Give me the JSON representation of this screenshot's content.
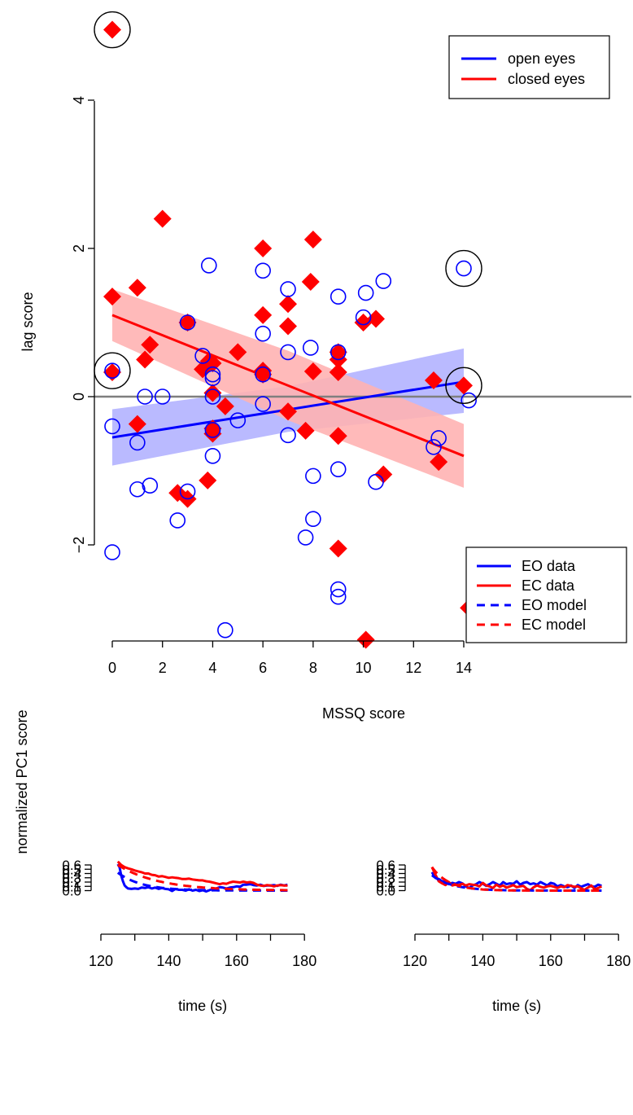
{
  "colors": {
    "blue": "#0000ff",
    "red": "#ff0000",
    "zero_line": "#7f7f7f",
    "blue_band": "#b3b3ff",
    "red_band": "#ffb3b3"
  },
  "chart_data": [
    {
      "type": "scatter",
      "xlabel": "MSSQ score",
      "ylabel": "lag score",
      "xlim": [
        0,
        14
      ],
      "ylim": [
        -3.5,
        5.0
      ],
      "xticks": [
        "0",
        "2",
        "4",
        "6",
        "8",
        "10",
        "12",
        "14"
      ],
      "yticks": [
        "−2",
        "0",
        "2",
        "4"
      ],
      "grid": false,
      "legend_position": "top-right",
      "legend": [
        "open eyes",
        "closed eyes"
      ],
      "hline_y": 0,
      "series": [
        {
          "name": "open eyes",
          "marker": "open-circle",
          "color": "#0000ff",
          "points": [
            [
              0,
              0.35
            ],
            [
              0,
              -0.4
            ],
            [
              0,
              -2.1
            ],
            [
              1,
              -0.62
            ],
            [
              1,
              -1.25
            ],
            [
              1.3,
              0
            ],
            [
              1.5,
              -1.2
            ],
            [
              2,
              0
            ],
            [
              2.6,
              -1.67
            ],
            [
              3,
              1
            ],
            [
              3,
              -1.28
            ],
            [
              3.6,
              0.55
            ],
            [
              3.85,
              1.77
            ],
            [
              4,
              0.25
            ],
            [
              4,
              0.3
            ],
            [
              4,
              0
            ],
            [
              4,
              -0.8
            ],
            [
              4,
              -0.45
            ],
            [
              4.5,
              -3.15
            ],
            [
              5,
              -0.32
            ],
            [
              6,
              1.7
            ],
            [
              6,
              0.85
            ],
            [
              6,
              0.3
            ],
            [
              6,
              -0.1
            ],
            [
              7,
              1.45
            ],
            [
              7,
              0.6
            ],
            [
              7,
              -0.52
            ],
            [
              7.7,
              -1.9
            ],
            [
              7.9,
              0.66
            ],
            [
              8,
              -1.07
            ],
            [
              8,
              -1.65
            ],
            [
              9,
              1.35
            ],
            [
              9,
              0.6
            ],
            [
              9,
              -0.98
            ],
            [
              9,
              -2.6
            ],
            [
              9,
              -2.7
            ],
            [
              10,
              1.07
            ],
            [
              10.1,
              1.4
            ],
            [
              10.5,
              -1.15
            ],
            [
              10.8,
              1.56
            ],
            [
              12.8,
              -0.68
            ],
            [
              13,
              -0.56
            ],
            [
              14,
              1.73
            ],
            [
              14.2,
              -0.05
            ]
          ],
          "fit": {
            "x0": 0,
            "y0": -0.55,
            "x1": 14,
            "y1": 0.2,
            "ci_lo": [
              -0.93,
              -0.22
            ],
            "ci_hi": [
              -0.17,
              0.65
            ]
          }
        },
        {
          "name": "closed eyes",
          "marker": "filled-diamond",
          "color": "#ff0000",
          "points": [
            [
              0,
              4.95
            ],
            [
              0,
              1.35
            ],
            [
              0,
              0.33
            ],
            [
              1,
              1.47
            ],
            [
              1,
              -0.37
            ],
            [
              1.3,
              0.5
            ],
            [
              1.5,
              0.7
            ],
            [
              2,
              2.4
            ],
            [
              2.6,
              -1.3
            ],
            [
              3,
              1
            ],
            [
              3,
              -1.38
            ],
            [
              3.6,
              0.37
            ],
            [
              3.85,
              0.48
            ],
            [
              4,
              0.45
            ],
            [
              4,
              0.05
            ],
            [
              4,
              -0.43
            ],
            [
              4,
              -0.5
            ],
            [
              3.8,
              -1.13
            ],
            [
              4.5,
              -0.13
            ],
            [
              5,
              0.6
            ],
            [
              6,
              2
            ],
            [
              6,
              1.1
            ],
            [
              6,
              0.35
            ],
            [
              6,
              0.3
            ],
            [
              7,
              1.25
            ],
            [
              7,
              0.95
            ],
            [
              7,
              -0.2
            ],
            [
              7.7,
              -0.46
            ],
            [
              7.9,
              1.55
            ],
            [
              8,
              2.12
            ],
            [
              8,
              0.34
            ],
            [
              9,
              0.6
            ],
            [
              9,
              0.5
            ],
            [
              9,
              0.33
            ],
            [
              9,
              -0.53
            ],
            [
              9,
              -2.05
            ],
            [
              10,
              1
            ],
            [
              10.1,
              -3.28
            ],
            [
              10.5,
              1.05
            ],
            [
              10.8,
              -1.05
            ],
            [
              12.8,
              0.22
            ],
            [
              13,
              -0.88
            ],
            [
              14,
              0.15
            ],
            [
              14.2,
              -2.85
            ]
          ],
          "fit": {
            "x0": 0,
            "y0": 1.1,
            "x1": 14,
            "y1": -0.8,
            "ci_lo": [
              0.75,
              -1.23
            ],
            "ci_hi": [
              1.45,
              -0.37
            ]
          }
        }
      ],
      "circled_points": [
        [
          0,
          4.95
        ],
        [
          0,
          0.35
        ],
        [
          14,
          1.73
        ],
        [
          14,
          0.15
        ]
      ]
    },
    {
      "type": "line",
      "ylabel": "normalized PC1 score",
      "xlabel": "time (s)",
      "xlim": [
        120,
        180
      ],
      "ylim": [
        0,
        0.6
      ],
      "xticks": [
        "120",
        "140",
        "160",
        "180"
      ],
      "yticks": [
        "0.0",
        "0.1",
        "0.2",
        "0.3",
        "0.4",
        "0.5",
        "0.6"
      ],
      "series": [
        {
          "name": "EO data",
          "style": "solid",
          "color": "#0000ff",
          "x": [
            125,
            125.5,
            126,
            126.5,
            127,
            127.5,
            128,
            129,
            130,
            131,
            132,
            133,
            134,
            135,
            136,
            137,
            138,
            139,
            140,
            141,
            142,
            143,
            144,
            145,
            146,
            147,
            148,
            149,
            150,
            151,
            152,
            153,
            154,
            155,
            156,
            157,
            158,
            159,
            160,
            161,
            162,
            163,
            164,
            165,
            166,
            167,
            168,
            169,
            170,
            171,
            172,
            173,
            174,
            175
          ],
          "y": [
            0.62,
            0.55,
            0.35,
            0.22,
            0.12,
            0.08,
            0.05,
            0.04,
            0.05,
            0.04,
            0.07,
            0.06,
            0.08,
            0.05,
            0.07,
            0.04,
            0.06,
            0.04,
            0.03,
            -0.01,
            0.04,
            0.02,
            0.02,
            0.0,
            0.03,
            0.0,
            0.02,
            -0.01,
            0.01,
            -0.02,
            0.01,
            0.04,
            0.05,
            0.08,
            0.07,
            0.05,
            0.07,
            0.08,
            0.1,
            0.09,
            0.14,
            0.14,
            0.15,
            0.13,
            0.12,
            0.14,
            0.11,
            0.12,
            0.12,
            0.13,
            0.11,
            0.14,
            0.12,
            0.14
          ]
        },
        {
          "name": "EC data",
          "style": "solid",
          "color": "#ff0000",
          "x": [
            125,
            126,
            127,
            128,
            129,
            130,
            131,
            132,
            133,
            134,
            135,
            136,
            137,
            138,
            139,
            140,
            141,
            142,
            143,
            144,
            145,
            146,
            147,
            148,
            149,
            150,
            151,
            152,
            153,
            154,
            155,
            156,
            157,
            158,
            159,
            160,
            161,
            162,
            163,
            164,
            165,
            166,
            167,
            168,
            169,
            170,
            171,
            172,
            173,
            174,
            175
          ],
          "y": [
            0.68,
            0.6,
            0.55,
            0.52,
            0.5,
            0.47,
            0.45,
            0.43,
            0.4,
            0.4,
            0.37,
            0.36,
            0.33,
            0.34,
            0.32,
            0.3,
            0.31,
            0.3,
            0.29,
            0.27,
            0.27,
            0.28,
            0.26,
            0.25,
            0.24,
            0.24,
            0.22,
            0.21,
            0.19,
            0.17,
            0.15,
            0.17,
            0.16,
            0.19,
            0.21,
            0.2,
            0.19,
            0.21,
            0.19,
            0.2,
            0.18,
            0.14,
            0.12,
            0.11,
            0.13,
            0.12,
            0.1,
            0.12,
            0.13,
            0.12,
            0.12
          ]
        },
        {
          "name": "EO model",
          "style": "dashed",
          "color": "#0000ff",
          "y0": 0.42,
          "tau": 7
        },
        {
          "name": "EC model",
          "style": "dashed",
          "color": "#ff0000",
          "y0": 0.6,
          "tau": 12
        }
      ]
    },
    {
      "type": "line",
      "xlabel": "time (s)",
      "xlim": [
        120,
        180
      ],
      "ylim": [
        0,
        0.6
      ],
      "xticks": [
        "120",
        "140",
        "160",
        "180"
      ],
      "yticks": [
        "0.0",
        "0.1",
        "0.2",
        "0.3",
        "0.4",
        "0.5",
        "0.6"
      ],
      "legend_position": "top-right",
      "legend": [
        "EO data",
        "EC data",
        "EO model",
        "EC model"
      ],
      "series": [
        {
          "name": "EO data",
          "style": "solid",
          "color": "#0000ff",
          "x": [
            125,
            126,
            127,
            128,
            129,
            130,
            131,
            132,
            133,
            134,
            135,
            136,
            137,
            138,
            139,
            140,
            141,
            142,
            143,
            144,
            145,
            146,
            147,
            148,
            149,
            150,
            151,
            152,
            153,
            154,
            155,
            156,
            157,
            158,
            159,
            160,
            161,
            162,
            163,
            164,
            165,
            166,
            167,
            168,
            169,
            170,
            171,
            172,
            173,
            174,
            175
          ],
          "y": [
            0.43,
            0.3,
            0.27,
            0.22,
            0.2,
            0.15,
            0.18,
            0.16,
            0.2,
            0.17,
            0.1,
            0.06,
            0.12,
            0.15,
            0.2,
            0.16,
            0.11,
            0.15,
            0.2,
            0.16,
            0.12,
            0.2,
            0.15,
            0.17,
            0.16,
            0.22,
            0.14,
            0.18,
            0.2,
            0.15,
            0.17,
            0.14,
            0.2,
            0.16,
            0.12,
            0.18,
            0.16,
            0.1,
            0.13,
            0.1,
            0.08,
            0.12,
            0.06,
            0.13,
            0.09,
            0.12,
            0.15,
            0.1,
            0.09,
            0.14,
            0.11
          ]
        },
        {
          "name": "EC data",
          "style": "solid",
          "color": "#ff0000",
          "x": [
            125,
            126,
            127,
            128,
            129,
            130,
            131,
            132,
            133,
            134,
            135,
            136,
            137,
            138,
            139,
            140,
            141,
            142,
            143,
            144,
            145,
            146,
            147,
            148,
            149,
            150,
            151,
            152,
            153,
            154,
            155,
            156,
            157,
            158,
            159,
            160,
            161,
            162,
            163,
            164,
            165,
            166,
            167,
            168,
            169,
            170,
            171,
            172,
            173,
            174,
            175
          ],
          "y": [
            0.55,
            0.38,
            0.22,
            0.17,
            0.13,
            0.2,
            0.12,
            0.14,
            0.13,
            0.16,
            0.12,
            0.15,
            0.14,
            0.13,
            0.1,
            0.18,
            0.12,
            0.1,
            0.06,
            0.14,
            0.09,
            0.12,
            0.07,
            0.1,
            0.13,
            0.08,
            0.1,
            0.11,
            0.04,
            0.01,
            0.08,
            0.12,
            0.09,
            0.07,
            0.1,
            0.11,
            0.09,
            0.06,
            0.1,
            0.08,
            0.13,
            0.11,
            0.09,
            0.1,
            0.05,
            0.02,
            0.07,
            0.12,
            0.03,
            0.06,
            0.1
          ]
        },
        {
          "name": "EO model",
          "style": "dashed",
          "color": "#0000ff",
          "y0": 0.36,
          "tau": 6
        },
        {
          "name": "EC model",
          "style": "dashed",
          "color": "#ff0000",
          "y0": 0.55,
          "tau": 5
        }
      ]
    }
  ]
}
